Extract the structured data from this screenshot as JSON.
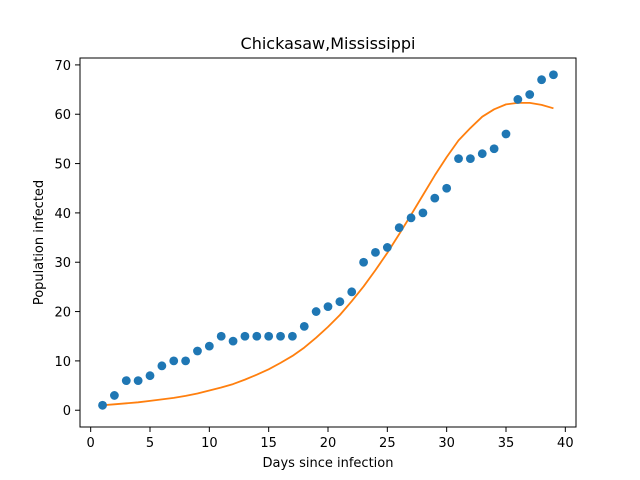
{
  "chart_data": {
    "type": "scatter",
    "title": "Chickasaw,Mississippi",
    "xlabel": "Days since infection",
    "ylabel": "Population infected",
    "xlim": [
      -0.9,
      40.9
    ],
    "ylim": [
      -3.4,
      71.4
    ],
    "xticks": [
      0,
      5,
      10,
      15,
      20,
      25,
      30,
      35,
      40
    ],
    "yticks": [
      0,
      10,
      20,
      30,
      40,
      50,
      60,
      70
    ],
    "grid": false,
    "series": [
      {
        "kind": "scatter",
        "color": "#1f77b4",
        "x": [
          1,
          2,
          3,
          4,
          5,
          6,
          7,
          8,
          9,
          10,
          11,
          12,
          13,
          14,
          15,
          16,
          17,
          18,
          19,
          20,
          21,
          22,
          23,
          24,
          25,
          26,
          27,
          28,
          29,
          30,
          31,
          32,
          33,
          34,
          35,
          36,
          37,
          38,
          39
        ],
        "y": [
          1,
          3,
          6,
          6,
          7,
          9,
          10,
          10,
          12,
          13,
          15,
          14,
          15,
          15,
          15,
          15,
          15,
          17,
          20,
          21,
          22,
          24,
          30,
          32,
          33,
          37,
          39,
          40,
          43,
          45,
          51,
          51,
          52,
          53,
          56,
          63,
          64,
          67,
          68
        ]
      },
      {
        "kind": "line",
        "color": "#ff7f0e",
        "x": [
          1,
          2,
          3,
          4,
          5,
          6,
          7,
          8,
          9,
          10,
          11,
          12,
          13,
          14,
          15,
          16,
          17,
          18,
          19,
          20,
          21,
          22,
          23,
          24,
          25,
          26,
          27,
          28,
          29,
          30,
          31,
          32,
          33,
          34,
          35,
          36,
          37,
          38,
          39
        ],
        "y": [
          1.0,
          1.2,
          1.4,
          1.6,
          1.9,
          2.2,
          2.5,
          2.9,
          3.4,
          4.0,
          4.6,
          5.3,
          6.2,
          7.2,
          8.3,
          9.6,
          11.0,
          12.7,
          14.7,
          16.9,
          19.3,
          22.1,
          25.1,
          28.4,
          31.9,
          35.7,
          39.6,
          43.6,
          47.6,
          51.3,
          54.7,
          57.2,
          59.5,
          61.0,
          62.0,
          62.3,
          62.3,
          61.9,
          61.2
        ]
      }
    ]
  }
}
